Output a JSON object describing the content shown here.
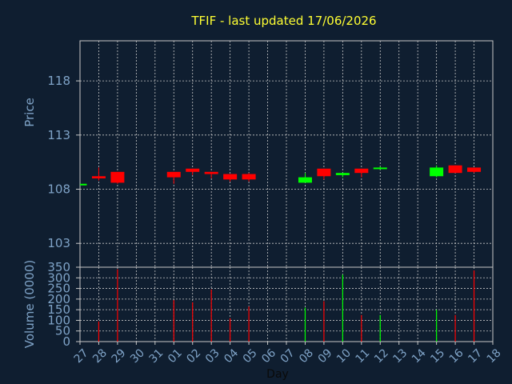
{
  "chart_data": {
    "title": "TFIF - last updated 17/06/2026",
    "type": "candlestick",
    "xlabel": "Day",
    "x_ticks": [
      "27",
      "28",
      "29",
      "30",
      "31",
      "01",
      "02",
      "03",
      "04",
      "05",
      "06",
      "07",
      "08",
      "09",
      "10",
      "11",
      "12",
      "13",
      "14",
      "15",
      "16",
      "17",
      "18"
    ],
    "price": {
      "ylabel": "Price",
      "ylim": [
        100.8,
        121.7
      ],
      "yticks": [
        103,
        108,
        113,
        118
      ],
      "candles": [
        {
          "day": "27",
          "open": 108.5,
          "high": 108.5,
          "low": 108.5,
          "close": 108.5
        },
        {
          "day": "28",
          "open": 109.2,
          "high": 110.0,
          "low": 108.8,
          "close": 109.0
        },
        {
          "day": "29",
          "open": 109.6,
          "high": 109.6,
          "low": 108.5,
          "close": 108.6
        },
        {
          "day": "01",
          "open": 109.6,
          "high": 109.6,
          "low": 108.5,
          "close": 109.1
        },
        {
          "day": "02",
          "open": 109.9,
          "high": 109.9,
          "low": 109.3,
          "close": 109.6
        },
        {
          "day": "03",
          "open": 109.6,
          "high": 109.6,
          "low": 109.0,
          "close": 109.4
        },
        {
          "day": "04",
          "open": 109.4,
          "high": 109.4,
          "low": 108.7,
          "close": 108.9
        },
        {
          "day": "05",
          "open": 109.4,
          "high": 109.5,
          "low": 108.7,
          "close": 108.9
        },
        {
          "day": "08",
          "open": 108.6,
          "high": 109.5,
          "low": 108.6,
          "close": 109.1
        },
        {
          "day": "09",
          "open": 109.9,
          "high": 109.9,
          "low": 108.9,
          "close": 109.2
        },
        {
          "day": "10",
          "open": 109.3,
          "high": 109.5,
          "low": 109.1,
          "close": 109.5
        },
        {
          "day": "11",
          "open": 109.9,
          "high": 109.9,
          "low": 109.1,
          "close": 109.5
        },
        {
          "day": "12",
          "open": 109.9,
          "high": 110.1,
          "low": 109.8,
          "close": 110.0
        },
        {
          "day": "15",
          "open": 109.2,
          "high": 110.2,
          "low": 109.1,
          "close": 110.0
        },
        {
          "day": "16",
          "open": 110.2,
          "high": 110.2,
          "low": 109.5,
          "close": 109.5
        },
        {
          "day": "17",
          "open": 110.0,
          "high": 110.0,
          "low": 109.5,
          "close": 109.6
        }
      ]
    },
    "volume": {
      "ylabel": "Volume (0000)",
      "ylim": [
        0,
        350
      ],
      "yticks": [
        0,
        50,
        100,
        150,
        200,
        250,
        300,
        350
      ],
      "bars": [
        {
          "day": "28",
          "value": 95,
          "direction": "down"
        },
        {
          "day": "29",
          "value": 340,
          "direction": "down"
        },
        {
          "day": "01",
          "value": 195,
          "direction": "down"
        },
        {
          "day": "02",
          "value": 185,
          "direction": "down"
        },
        {
          "day": "03",
          "value": 245,
          "direction": "down"
        },
        {
          "day": "04",
          "value": 110,
          "direction": "down"
        },
        {
          "day": "05",
          "value": 165,
          "direction": "down"
        },
        {
          "day": "08",
          "value": 160,
          "direction": "up"
        },
        {
          "day": "09",
          "value": 190,
          "direction": "down"
        },
        {
          "day": "10",
          "value": 315,
          "direction": "up"
        },
        {
          "day": "11",
          "value": 125,
          "direction": "down"
        },
        {
          "day": "12",
          "value": 125,
          "direction": "up"
        },
        {
          "day": "15",
          "value": 150,
          "direction": "up"
        },
        {
          "day": "16",
          "value": 125,
          "direction": "down"
        },
        {
          "day": "17",
          "value": 335,
          "direction": "down"
        }
      ]
    },
    "colors": {
      "background": "#0f1e30",
      "up": "#00ff00",
      "down": "#ff0000",
      "grid": "#c8c8c8",
      "axis_text": "#7fa3c7",
      "title": "#ffff33"
    },
    "grid": true
  }
}
